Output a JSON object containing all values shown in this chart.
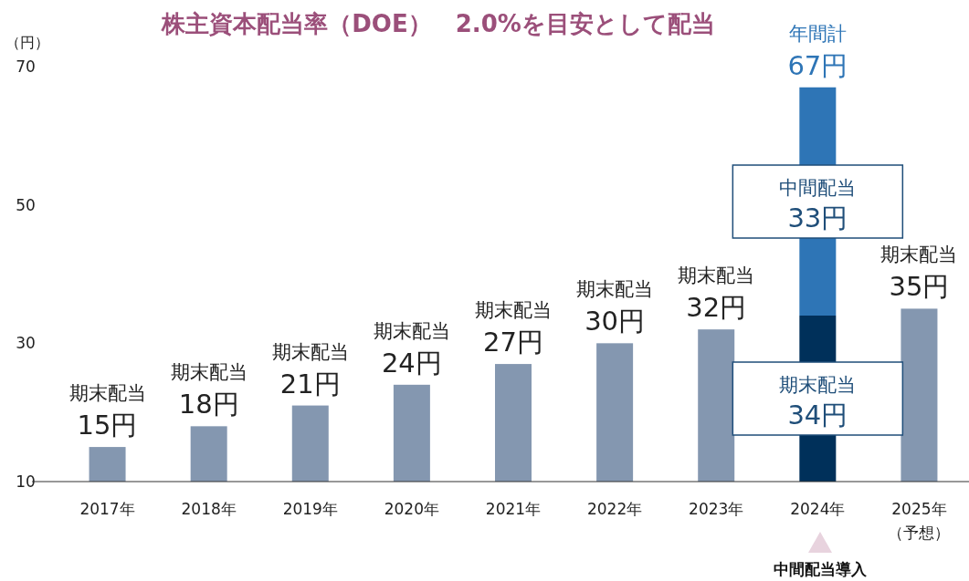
{
  "chart_data": {
    "type": "bar",
    "stacked": true,
    "title": "株主資本配当率（DOE）　2.0%を目安として配当",
    "ylabel": "（円）",
    "categories": [
      "2017年",
      "2018年",
      "2019年",
      "2020年",
      "2021年",
      "2022年",
      "2023年",
      "2024年",
      "2025年（予想）"
    ],
    "series": [
      {
        "colors": [
          "#8497b0",
          "#8497b0",
          "#8497b0",
          "#8497b0",
          "#8497b0",
          "#8497b0",
          "#8497b0",
          "#00305a",
          "#8497b0"
        ],
        "values": [
          15,
          18,
          21,
          24,
          27,
          30,
          32,
          34,
          35
        ],
        "value_labels": [
          "期末配当\n15円",
          "期末配当\n18円",
          "期末配当\n21円",
          "期末配当\n24円",
          "期末配当\n27円",
          "期末配当\n30円",
          "期末配当\n32円",
          "期末配当\n34円",
          "期末配当\n35円"
        ]
      },
      {
        "color": "#2e75b6",
        "values": [
          null,
          null,
          null,
          null,
          null,
          null,
          null,
          33,
          null
        ],
        "value_labels": [
          null,
          null,
          null,
          null,
          null,
          null,
          null,
          "中間配当\n33円",
          null
        ]
      }
    ],
    "totals": [
      null,
      null,
      null,
      null,
      null,
      null,
      null,
      "年間計\n67円",
      null
    ],
    "ylim": [
      10,
      70
    ],
    "yticks": [
      10,
      30,
      50,
      70
    ],
    "grid": false,
    "annotations": [
      "中間配当導入"
    ]
  }
}
